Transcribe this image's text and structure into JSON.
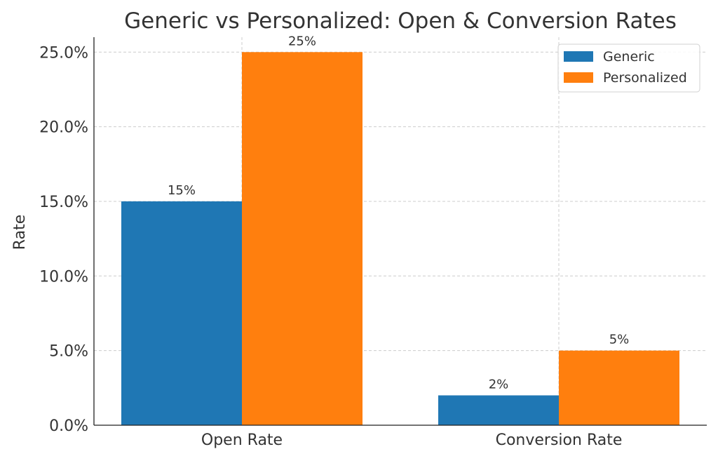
{
  "chart_data": {
    "type": "bar",
    "title": "Generic vs Personalized: Open & Conversion Rates",
    "xlabel": "",
    "ylabel": "Rate",
    "categories": [
      "Open Rate",
      "Conversion Rate"
    ],
    "series": [
      {
        "name": "Generic",
        "values": [
          0.15,
          0.02
        ],
        "labels": [
          "15%",
          "2%"
        ],
        "color": "#1f77b4"
      },
      {
        "name": "Personalized",
        "values": [
          0.25,
          0.05
        ],
        "labels": [
          "25%",
          "5%"
        ],
        "color": "#ff7f0e"
      }
    ],
    "ylim": [
      0,
      0.26
    ],
    "yticks": [
      0,
      0.05,
      0.1,
      0.15,
      0.2,
      0.25
    ],
    "ytick_labels": [
      "0.0%",
      "5.0%",
      "10.0%",
      "15.0%",
      "20.0%",
      "25.0%"
    ],
    "grid": true,
    "legend_position": "top-right"
  }
}
